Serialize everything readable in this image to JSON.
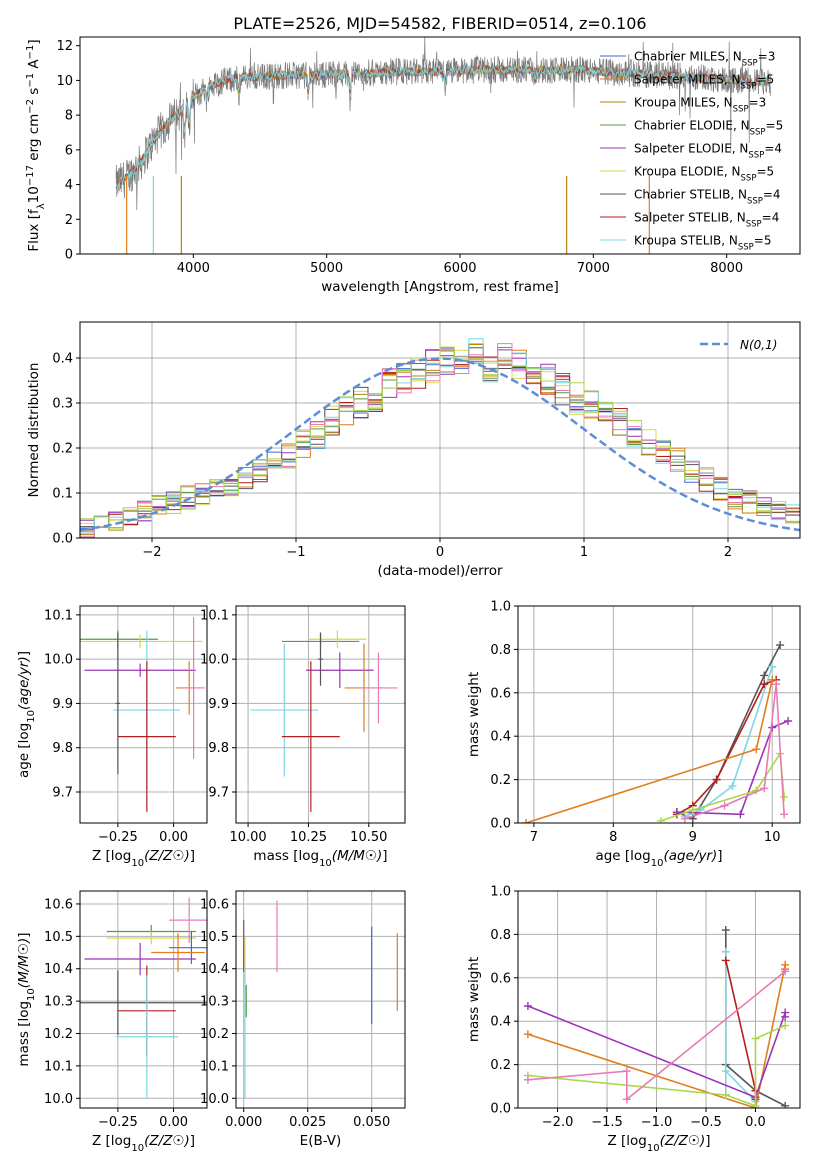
{
  "figure": {
    "title": "PLATE=2526, MJD=54582, FIBERID=0514, z=0.106",
    "series_colors": [
      "#3b6bd6",
      "#e37c1e",
      "#b8860b",
      "#5a9a4a",
      "#9b35b5",
      "#d9d945",
      "#555555",
      "#b41e1e",
      "#7fd6e3",
      "#e87bb7",
      "#a8d84a"
    ]
  },
  "chart_data": [
    {
      "id": "spectrum",
      "type": "line",
      "xlabel": "wavelength [Angstrom, rest frame]",
      "ylabel": "Flux [f_λ10^-17 erg cm^-2 s^-1 A^-1]",
      "xlim": [
        3150,
        8550
      ],
      "ylim": [
        0,
        12.5
      ],
      "xticks": [
        4000,
        5000,
        6000,
        7000,
        8000
      ],
      "yticks": [
        0,
        2,
        4,
        6,
        8,
        10,
        12
      ],
      "grid": false,
      "legend_position": "center-right",
      "continuum": {
        "x": [
          3420,
          3500,
          3600,
          3700,
          3800,
          3900,
          4000,
          4100,
          4200,
          4300,
          4400,
          4500,
          4700,
          4900,
          5100,
          5300,
          5500,
          5700,
          5900,
          6100,
          6300,
          6500,
          6700,
          6900,
          7100,
          7300,
          7500,
          7700,
          7900,
          8100,
          8300
        ],
        "y": [
          4.0,
          4.4,
          5.2,
          6.5,
          7.5,
          8.2,
          9.0,
          9.6,
          9.9,
          10.1,
          10.2,
          10.2,
          10.3,
          10.3,
          10.4,
          10.4,
          10.5,
          10.5,
          10.5,
          10.6,
          10.6,
          10.6,
          10.6,
          10.6,
          10.5,
          10.4,
          10.3,
          10.2,
          10.1,
          10.0,
          9.9
        ]
      },
      "legend": [
        {
          "label": "Chabrier MILES, N_SSP=3",
          "color": "#3b6bd6"
        },
        {
          "label": "Salpeter MILES, N_SSP=5",
          "color": "#e37c1e"
        },
        {
          "label": "Kroupa MILES, N_SSP=3",
          "color": "#b8860b"
        },
        {
          "label": "Chabrier ELODIE, N_SSP=5",
          "color": "#5a9a4a"
        },
        {
          "label": "Salpeter ELODIE, N_SSP=4",
          "color": "#9b35b5"
        },
        {
          "label": "Kroupa ELODIE, N_SSP=5",
          "color": "#d9d945"
        },
        {
          "label": "Chabrier STELIB, N_SSP=4",
          "color": "#555555"
        },
        {
          "label": "Salpeter STELIB, N_SSP=4",
          "color": "#b41e1e"
        },
        {
          "label": "Kroupa STELIB, N_SSP=5",
          "color": "#7fd6e3"
        }
      ]
    },
    {
      "id": "residuals",
      "type": "histogram",
      "xlabel": "(data-model)/error",
      "ylabel": "Normed distribution",
      "xlim": [
        -2.5,
        2.5
      ],
      "ylim": [
        0,
        0.48
      ],
      "xticks": [
        -2,
        -1,
        0,
        1,
        2
      ],
      "yticks": [
        0.0,
        0.1,
        0.2,
        0.3,
        0.4
      ],
      "grid": true,
      "legend_position": "top-right",
      "gaussian_label": "N(0,1)",
      "gaussian_color": "#5b8ed6",
      "bin_width": 0.1,
      "bins_start": -2.5,
      "values": [
        0.02,
        0.03,
        0.04,
        0.05,
        0.06,
        0.07,
        0.08,
        0.09,
        0.1,
        0.11,
        0.11,
        0.13,
        0.15,
        0.17,
        0.18,
        0.21,
        0.23,
        0.26,
        0.28,
        0.3,
        0.31,
        0.34,
        0.36,
        0.37,
        0.38,
        0.39,
        0.38,
        0.41,
        0.38,
        0.4,
        0.39,
        0.37,
        0.35,
        0.33,
        0.31,
        0.3,
        0.28,
        0.26,
        0.23,
        0.21,
        0.19,
        0.17,
        0.15,
        0.13,
        0.11,
        0.09,
        0.08,
        0.07,
        0.06,
        0.05
      ],
      "spread": 0.022
    },
    {
      "id": "age-vs-Z",
      "type": "errorbar",
      "xlabel": "Z [log10(Z/Z☉)]",
      "ylabel": "age [log10(age/yr)]",
      "xlim": [
        -0.42,
        0.15
      ],
      "ylim": [
        9.63,
        10.12
      ],
      "xticks": [
        -0.25,
        0.0
      ],
      "xticklabels": [
        "−0.25",
        "0.00"
      ],
      "yticks": [
        9.7,
        9.8,
        9.9,
        10.0,
        10.1
      ],
      "grid": true,
      "points": [
        {
          "x": -0.25,
          "y": 10.045,
          "xerr": 0.18,
          "yerr": 0.02,
          "color": "#5a9a4a"
        },
        {
          "x": -0.15,
          "y": 10.04,
          "xerr": 0.28,
          "yerr": 0.015,
          "color": "#d9d945"
        },
        {
          "x": -0.15,
          "y": 9.975,
          "xerr": 0.25,
          "yerr": 0.015,
          "color": "#9b35b5"
        },
        {
          "x": 0.07,
          "y": 9.935,
          "xerr": 0.06,
          "yerr": 0.06,
          "color": "#e37c1e"
        },
        {
          "x": 0.09,
          "y": 9.935,
          "xerr": 0.05,
          "yerr": 0.16,
          "color": "#e87bb7"
        },
        {
          "x": -0.12,
          "y": 9.885,
          "xerr": 0.15,
          "yerr": 0.18,
          "color": "#7fd6e3"
        },
        {
          "x": -0.12,
          "y": 9.825,
          "xerr": 0.13,
          "yerr": 0.17,
          "color": "#b41e1e"
        },
        {
          "x": -0.25,
          "y": 9.9,
          "xerr": 0.01,
          "yerr": 0.16,
          "color": "#555555"
        }
      ]
    },
    {
      "id": "age-vs-mass",
      "type": "errorbar",
      "xlabel": "mass [log10(M/M☉)]",
      "ylabel": "",
      "xlim": [
        9.95,
        10.65
      ],
      "ylim": [
        9.63,
        10.12
      ],
      "xticks": [
        10.0,
        10.25,
        10.5
      ],
      "xticklabels": [
        "10.00",
        "10.25",
        "10.50"
      ],
      "yticks": [
        9.7,
        9.8,
        9.9,
        10.0,
        10.1
      ],
      "grid": true,
      "points": [
        {
          "x": 10.3,
          "y": 10.04,
          "xerr": 0.16,
          "yerr": 0.02,
          "color": "#5a9a4a"
        },
        {
          "x": 10.37,
          "y": 10.045,
          "xerr": 0.12,
          "yerr": 0.02,
          "color": "#d9d945"
        },
        {
          "x": 10.38,
          "y": 9.975,
          "xerr": 0.14,
          "yerr": 0.04,
          "color": "#9b35b5"
        },
        {
          "x": 10.48,
          "y": 9.935,
          "xerr": 0.08,
          "yerr": 0.1,
          "color": "#e37c1e"
        },
        {
          "x": 10.54,
          "y": 9.935,
          "xerr": 0.08,
          "yerr": 0.08,
          "color": "#e87bb7"
        },
        {
          "x": 10.15,
          "y": 9.885,
          "xerr": 0.14,
          "yerr": 0.15,
          "color": "#7fd6e3"
        },
        {
          "x": 10.26,
          "y": 9.825,
          "xerr": 0.12,
          "yerr": 0.17,
          "color": "#b41e1e"
        },
        {
          "x": 10.3,
          "y": 10.0,
          "xerr": 0.01,
          "yerr": 0.06,
          "color": "#555555"
        }
      ]
    },
    {
      "id": "weight-vs-age",
      "type": "line",
      "xlabel": "age [log10(age/yr)]",
      "ylabel": "mass weight",
      "xlim": [
        6.8,
        10.35
      ],
      "ylim": [
        0,
        1.0
      ],
      "xticks": [
        7,
        8,
        9,
        10
      ],
      "yticks": [
        0.0,
        0.2,
        0.4,
        0.6,
        0.8,
        1.0
      ],
      "grid": true,
      "series": [
        {
          "color": "#555555",
          "x": [
            8.8,
            9.0,
            9.3,
            9.9,
            10.1
          ],
          "y": [
            0.05,
            0.02,
            0.2,
            0.68,
            0.82
          ]
        },
        {
          "color": "#7fd6e3",
          "x": [
            8.9,
            9.1,
            9.5,
            10.0
          ],
          "y": [
            0.03,
            0.06,
            0.17,
            0.72
          ]
        },
        {
          "color": "#b41e1e",
          "x": [
            8.8,
            9.0,
            9.3,
            9.9,
            10.05
          ],
          "y": [
            0.04,
            0.08,
            0.2,
            0.64,
            0.66
          ]
        },
        {
          "color": "#e37c1e",
          "x": [
            6.9,
            9.8,
            10.0
          ],
          "y": [
            0.0,
            0.34,
            0.66
          ]
        },
        {
          "color": "#9b35b5",
          "x": [
            8.8,
            9.6,
            10.0,
            10.2
          ],
          "y": [
            0.05,
            0.04,
            0.44,
            0.47
          ]
        },
        {
          "color": "#a8d84a",
          "x": [
            8.6,
            9.0,
            9.8,
            10.1,
            10.15
          ],
          "y": [
            0.01,
            0.06,
            0.15,
            0.32,
            0.12
          ]
        },
        {
          "color": "#e87bb7",
          "x": [
            8.9,
            9.4,
            9.9,
            10.05,
            10.15
          ],
          "y": [
            0.02,
            0.08,
            0.16,
            0.64,
            0.04
          ]
        }
      ]
    },
    {
      "id": "mass-vs-Z",
      "type": "errorbar",
      "xlabel": "Z [log10(Z/Z☉)]",
      "ylabel": "mass [log10(M/M☉)]",
      "xlim": [
        -0.42,
        0.15
      ],
      "ylim": [
        9.97,
        10.64
      ],
      "xticks": [
        -0.25,
        0.0
      ],
      "xticklabels": [
        "−0.25",
        "0.00"
      ],
      "yticks": [
        10.0,
        10.1,
        10.2,
        10.3,
        10.4,
        10.5,
        10.6
      ],
      "grid": true,
      "points": [
        {
          "x": -0.1,
          "y": 10.515,
          "xerr": 0.2,
          "yerr": 0.02,
          "color": "#5a9a4a"
        },
        {
          "x": -0.1,
          "y": 10.495,
          "xerr": 0.2,
          "yerr": 0.02,
          "color": "#d9d945"
        },
        {
          "x": 0.08,
          "y": 10.465,
          "xerr": 0.1,
          "yerr": 0.05,
          "color": "#3b6bd6"
        },
        {
          "x": -0.15,
          "y": 10.43,
          "xerr": 0.25,
          "yerr": 0.05,
          "color": "#9b35b5"
        },
        {
          "x": 0.07,
          "y": 10.55,
          "xerr": 0.09,
          "yerr": 0.07,
          "color": "#e87bb7"
        },
        {
          "x": 0.02,
          "y": 10.45,
          "xerr": 0.12,
          "yerr": 0.06,
          "color": "#e37c1e"
        },
        {
          "x": -0.25,
          "y": 10.295,
          "xerr": 0.4,
          "yerr": 0.1,
          "color": "#555555"
        },
        {
          "x": -0.12,
          "y": 10.27,
          "xerr": 0.13,
          "yerr": 0.14,
          "color": "#b41e1e"
        },
        {
          "x": -0.12,
          "y": 10.19,
          "xerr": 0.14,
          "yerr": 0.19,
          "color": "#7fd6e3"
        }
      ]
    },
    {
      "id": "mass-vs-EBV",
      "type": "errorbar",
      "xlabel": "E(B-V)",
      "ylabel": "",
      "xlim": [
        -0.003,
        0.063
      ],
      "ylim": [
        9.97,
        10.64
      ],
      "xticks": [
        0.0,
        0.025,
        0.05
      ],
      "xticklabels": [
        "0.000",
        "0.025",
        "0.050"
      ],
      "yticks": [
        10.0,
        10.1,
        10.2,
        10.3,
        10.4,
        10.5,
        10.6
      ],
      "grid": true,
      "points": [
        {
          "x": 0.0,
          "y": 10.47,
          "xerr": 0,
          "yerr": 0.08,
          "color": "#9b35b5"
        },
        {
          "x": 0.0005,
          "y": 10.43,
          "xerr": 0,
          "yerr": 0.07,
          "color": "#d9d945"
        },
        {
          "x": 0.0005,
          "y": 10.2,
          "xerr": 0,
          "yerr": 0.2,
          "color": "#7fd6e3"
        },
        {
          "x": 0.001,
          "y": 10.3,
          "xerr": 0,
          "yerr": 0.05,
          "color": "#5a9a4a"
        },
        {
          "x": 0.013,
          "y": 10.5,
          "xerr": 0,
          "yerr": 0.11,
          "color": "#e87bb7"
        },
        {
          "x": 0.05,
          "y": 10.38,
          "xerr": 0,
          "yerr": 0.15,
          "color": "#3b6bd6"
        },
        {
          "x": 0.06,
          "y": 10.39,
          "xerr": 0,
          "yerr": 0.12,
          "color": "#e37c1e"
        }
      ]
    },
    {
      "id": "weight-vs-Z",
      "type": "line",
      "xlabel": "Z [log10(Z/Z☉)]",
      "ylabel": "mass weight",
      "xlim": [
        -2.4,
        0.45
      ],
      "ylim": [
        0,
        1.0
      ],
      "xticks": [
        -2.0,
        -1.5,
        -1.0,
        -0.5,
        0.0
      ],
      "xticklabels": [
        "−2.0",
        "−1.5",
        "−1.0",
        "−0.5",
        "0.0"
      ],
      "yticks": [
        0.0,
        0.2,
        0.4,
        0.6,
        0.8,
        1.0
      ],
      "grid": true,
      "series": [
        {
          "color": "#555555",
          "x": [
            -0.3,
            -0.3,
            0.0,
            0.3
          ],
          "y": [
            0.82,
            0.2,
            0.08,
            0.01
          ]
        },
        {
          "color": "#7fd6e3",
          "x": [
            -0.3,
            -0.3,
            -0.3,
            0.0
          ],
          "y": [
            0.72,
            0.06,
            0.17,
            0.03
          ]
        },
        {
          "color": "#b41e1e",
          "x": [
            -0.3,
            0.0,
            0.0
          ],
          "y": [
            0.68,
            0.08,
            0.04
          ]
        },
        {
          "color": "#e37c1e",
          "x": [
            -2.3,
            0.0,
            0.3,
            0.3
          ],
          "y": [
            0.34,
            0.0,
            0.66,
            0.64
          ]
        },
        {
          "color": "#9b35b5",
          "x": [
            -2.3,
            0.0,
            0.3,
            0.3
          ],
          "y": [
            0.47,
            0.05,
            0.44,
            0.42
          ]
        },
        {
          "color": "#a8d84a",
          "x": [
            -2.3,
            -0.3,
            0.0,
            0.0,
            0.3
          ],
          "y": [
            0.15,
            0.06,
            0.01,
            0.32,
            0.38
          ]
        },
        {
          "color": "#e87bb7",
          "x": [
            -2.3,
            -1.3,
            -1.3,
            0.3
          ],
          "y": [
            0.13,
            0.17,
            0.04,
            0.63
          ]
        }
      ]
    }
  ]
}
